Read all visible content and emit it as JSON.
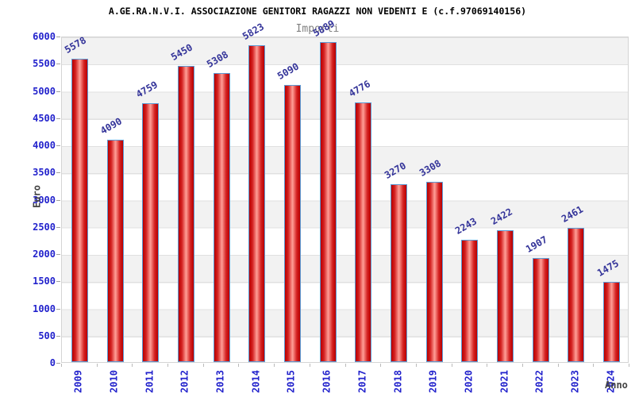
{
  "title": "A.GE.RA.N.V.I. ASSOCIAZIONE GENITORI RAGAZZI NON VEDENTI E (c.f.97069140156)",
  "chart_data": {
    "type": "bar",
    "title": "Importi",
    "xlabel": "Anno",
    "ylabel": "Euro",
    "categories": [
      "2009",
      "2010",
      "2011",
      "2012",
      "2013",
      "2014",
      "2015",
      "2016",
      "2017",
      "2018",
      "2019",
      "2020",
      "2021",
      "2022",
      "2023",
      "2024"
    ],
    "values": [
      5578,
      4090,
      4759,
      5450,
      5308,
      5823,
      5090,
      5889,
      4776,
      3270,
      3308,
      2243,
      2422,
      1907,
      2461,
      1475
    ],
    "ylim": [
      0,
      6000
    ],
    "ytick_step": 500,
    "ytick_labels": [
      "0",
      "500",
      "1000",
      "1500",
      "2000",
      "2500",
      "3000",
      "3500",
      "4000",
      "4500",
      "5000",
      "5500",
      "6000"
    ],
    "grid": true,
    "legend": false,
    "value_labels_shown": true
  },
  "colors": {
    "bar_fill_edge": "#b80000",
    "bar_fill_mid": "#ff9f97",
    "bar_border": "#5b9bd5",
    "value_label": "#333399",
    "axis_tick_label": "#2222cc",
    "axis_title": "#444444",
    "subtitle": "#808080",
    "band": "#f2f2f2",
    "grid_line": "#e0e0e0",
    "plot_border": "#d4d4d4"
  }
}
